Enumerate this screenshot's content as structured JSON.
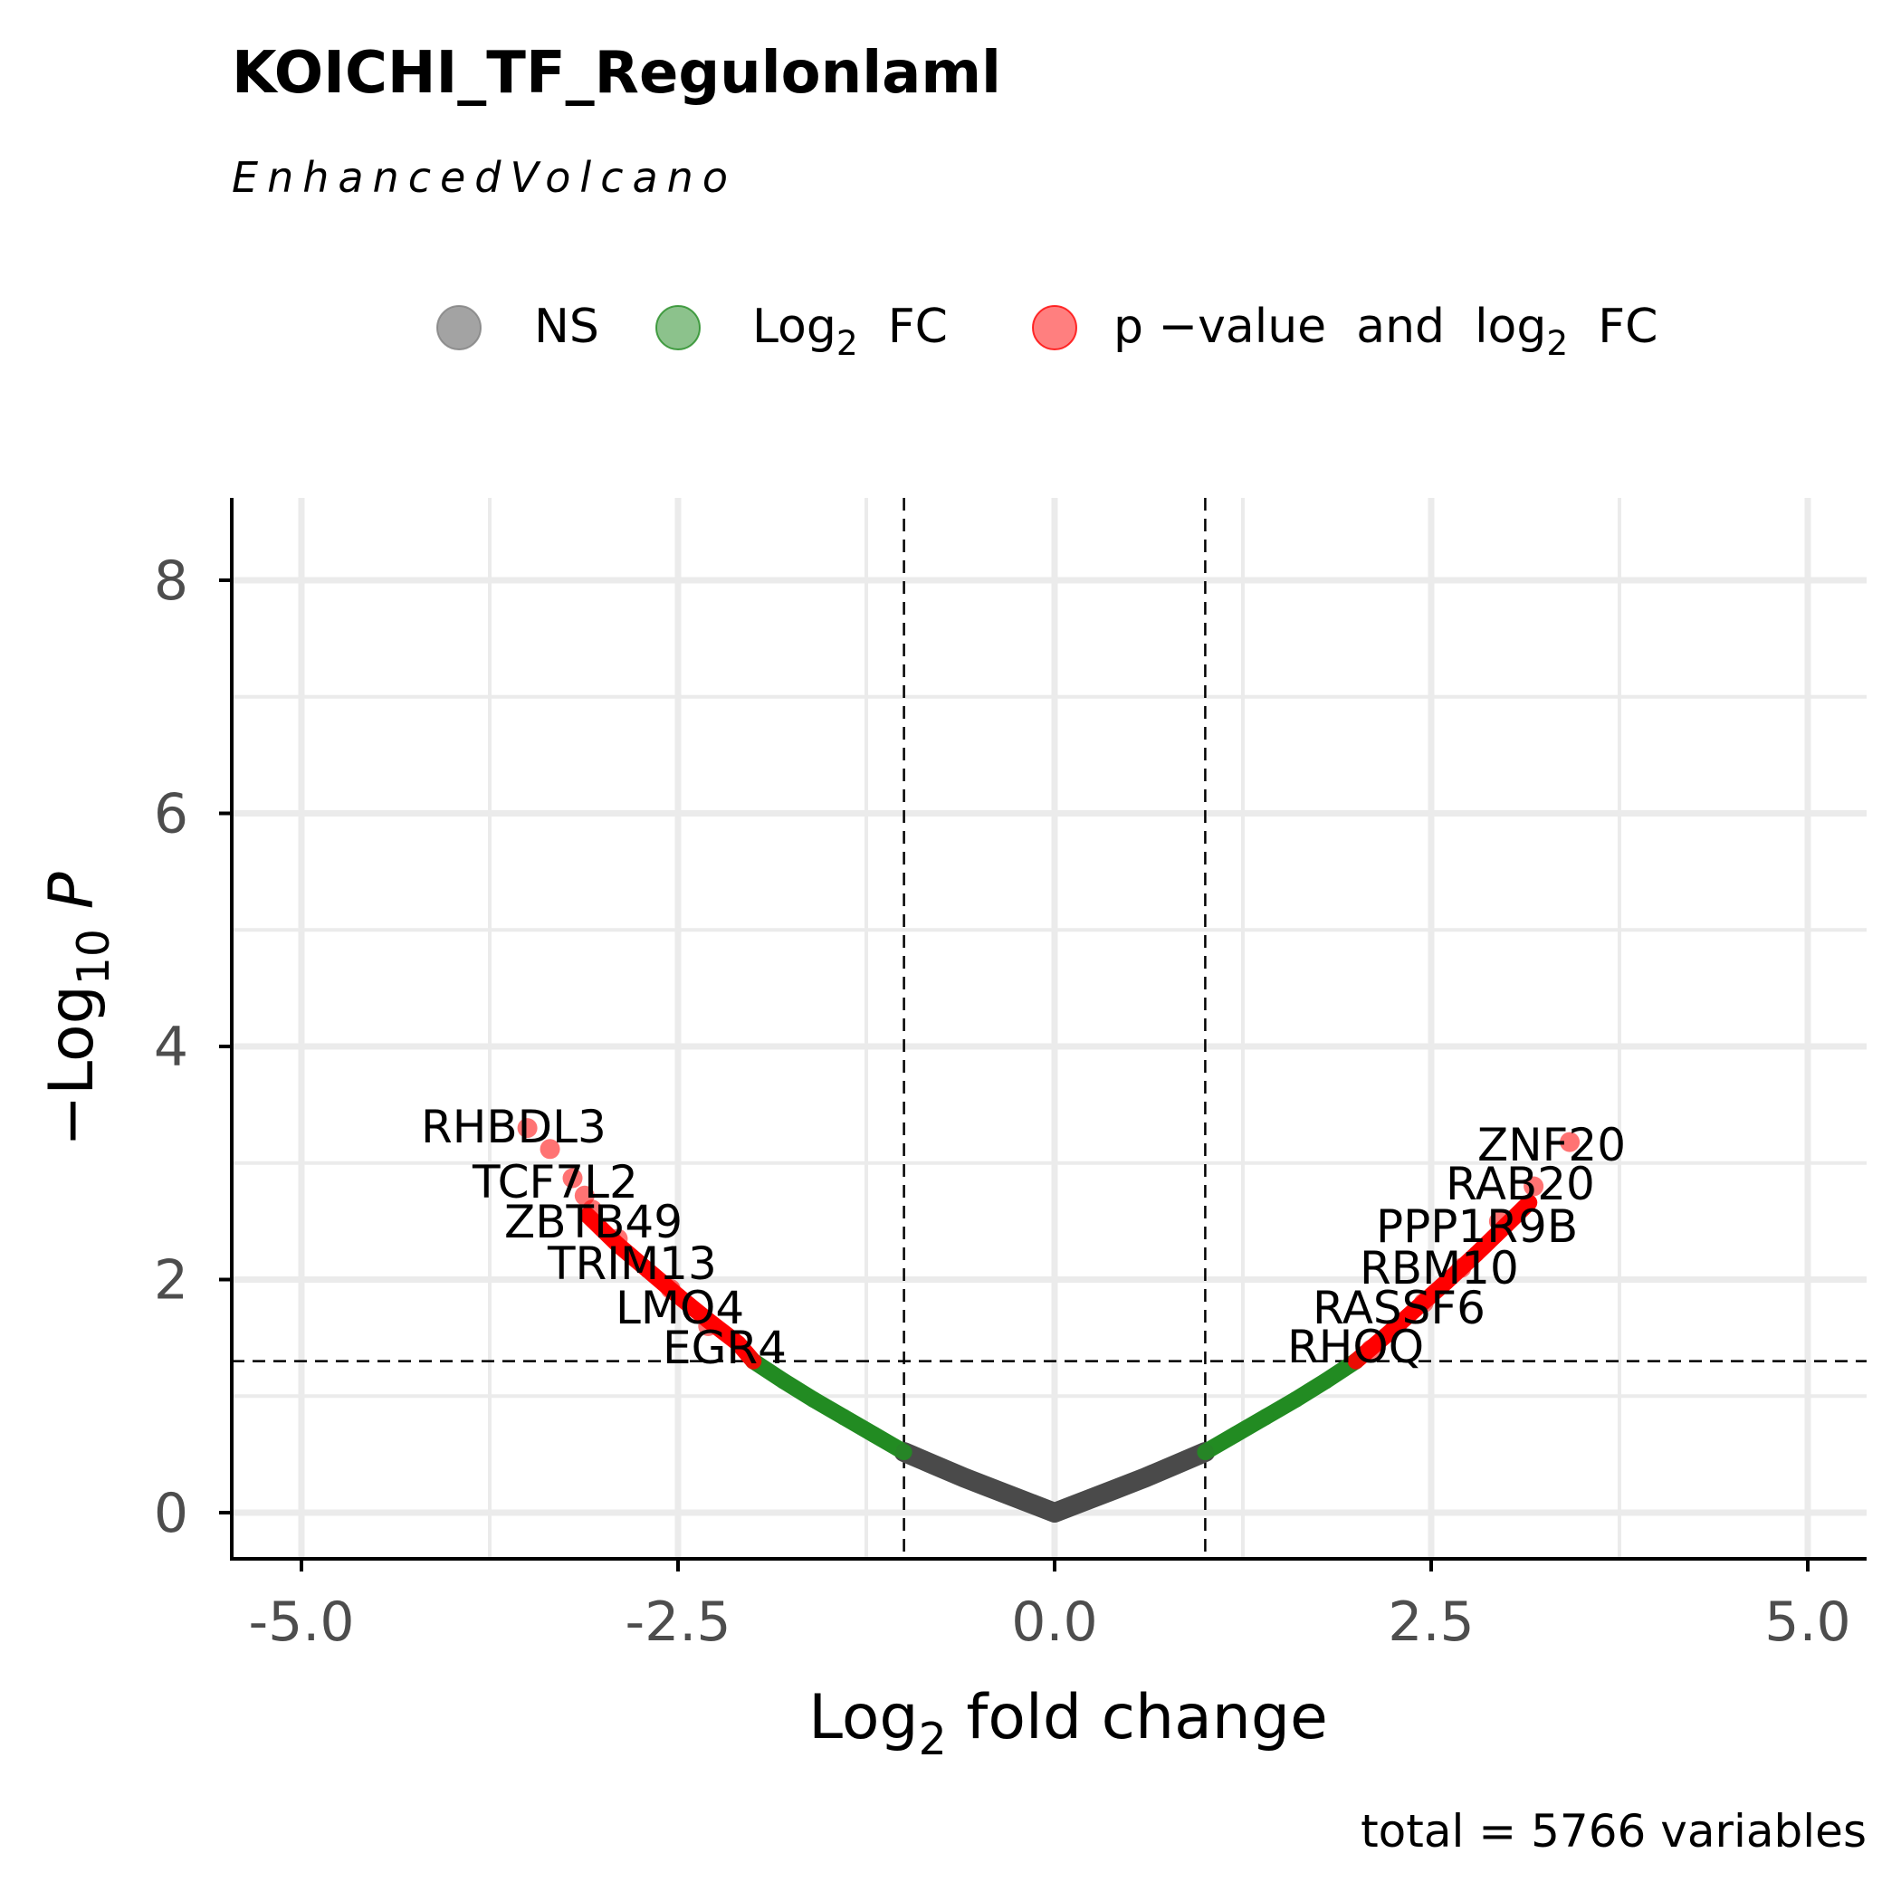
{
  "chart_data": {
    "type": "scatter",
    "title": "KOICHI_TF_Regulonlaml",
    "subtitle": "EnhancedVolcano",
    "xlabel": {
      "main": "Log",
      "sub": "2",
      "rest": " fold change"
    },
    "ylabel": {
      "main": "−Log",
      "sub": "10",
      "rest": " P"
    },
    "caption": "total = 5766 variables",
    "xlim": [
      -5.4,
      5.4
    ],
    "ylim": [
      -0.2,
      8.6
    ],
    "x_ticks": [
      {
        "value": -5.0,
        "label": "-5.0"
      },
      {
        "value": -2.5,
        "label": "-2.5"
      },
      {
        "value": 0.0,
        "label": "0.0"
      },
      {
        "value": 2.5,
        "label": "2.5"
      },
      {
        "value": 5.0,
        "label": "5.0"
      }
    ],
    "y_ticks": [
      {
        "value": 0,
        "label": "0"
      },
      {
        "value": 2,
        "label": "2"
      },
      {
        "value": 4,
        "label": "4"
      },
      {
        "value": 6,
        "label": "6"
      },
      {
        "value": 8,
        "label": "8"
      }
    ],
    "x_minor": [
      -3.75,
      -1.25,
      1.25,
      3.75
    ],
    "y_minor": [
      1,
      3,
      5,
      7
    ],
    "fc_cutoff": [
      -1,
      1
    ],
    "p_cutoff": 1.3,
    "grid": true,
    "legend_position": "top",
    "legend": [
      {
        "name": "NS",
        "color": "#808080"
      },
      {
        "name": "Log₂ FC",
        "main": "Log",
        "sub": "2",
        "rest": "  FC",
        "color": "#228b22"
      },
      {
        "name": "p −value and log₂ FC",
        "main": "p −value  and  log",
        "sub": "2",
        "rest": "  FC",
        "color": "#ff0000"
      }
    ],
    "series": [
      {
        "name": "NS",
        "color": "#4a4a4a",
        "points": [
          [
            -1.0,
            0.52
          ],
          [
            -0.8,
            0.41
          ],
          [
            -0.6,
            0.3
          ],
          [
            -0.4,
            0.2
          ],
          [
            -0.2,
            0.1
          ],
          [
            0.0,
            0.0
          ],
          [
            0.2,
            0.1
          ],
          [
            0.4,
            0.2
          ],
          [
            0.6,
            0.3
          ],
          [
            0.8,
            0.41
          ],
          [
            1.0,
            0.52
          ]
        ]
      },
      {
        "name": "Log₂ FC",
        "color": "#228b22",
        "points": [
          [
            -2.0,
            1.3
          ],
          [
            -1.8,
            1.13
          ],
          [
            -1.6,
            0.97
          ],
          [
            -1.4,
            0.82
          ],
          [
            -1.2,
            0.67
          ],
          [
            -1.0,
            0.52
          ],
          [
            1.0,
            0.52
          ],
          [
            1.2,
            0.67
          ],
          [
            1.4,
            0.82
          ],
          [
            1.6,
            0.97
          ],
          [
            1.8,
            1.13
          ],
          [
            2.0,
            1.3
          ]
        ]
      },
      {
        "name": "p −value and log₂ FC",
        "color": "#ff0000",
        "points": [
          [
            -3.1,
            2.55
          ],
          [
            -2.9,
            2.3
          ],
          [
            -2.7,
            2.08
          ],
          [
            -2.5,
            1.86
          ],
          [
            -2.3,
            1.65
          ],
          [
            -2.1,
            1.45
          ],
          [
            -2.0,
            1.3
          ],
          [
            2.0,
            1.3
          ],
          [
            2.2,
            1.52
          ],
          [
            2.4,
            1.75
          ],
          [
            2.6,
            1.98
          ],
          [
            2.8,
            2.22
          ],
          [
            3.0,
            2.47
          ],
          [
            3.15,
            2.66
          ]
        ]
      }
    ],
    "highlighted": [
      {
        "gene": "RHBDL3",
        "x": -3.5,
        "y": 3.3
      },
      {
        "gene": "TCF7L2",
        "x": -3.2,
        "y": 2.87
      },
      {
        "gene": "ZBTB49",
        "x": -3.07,
        "y": 2.6
      },
      {
        "gene": "TRIM13",
        "x": -2.9,
        "y": 2.35
      },
      {
        "gene": "LMO4",
        "x": -2.55,
        "y": 1.92
      },
      {
        "gene": "EGR4",
        "x": -2.3,
        "y": 1.6
      },
      {
        "gene": "ZNF20",
        "x": 3.42,
        "y": 3.18
      },
      {
        "gene": "RAB20",
        "x": 3.18,
        "y": 2.8
      },
      {
        "gene": "PPP1R9B",
        "x": 2.95,
        "y": 2.5
      },
      {
        "gene": "RBM10",
        "x": 2.7,
        "y": 2.1
      },
      {
        "gene": "RASSF6",
        "x": 2.45,
        "y": 1.8
      },
      {
        "gene": "RHOQ",
        "x": 2.1,
        "y": 1.4
      }
    ],
    "extra_points": [
      {
        "x": -3.35,
        "y": 3.12
      },
      {
        "x": -3.12,
        "y": 2.72
      }
    ]
  }
}
